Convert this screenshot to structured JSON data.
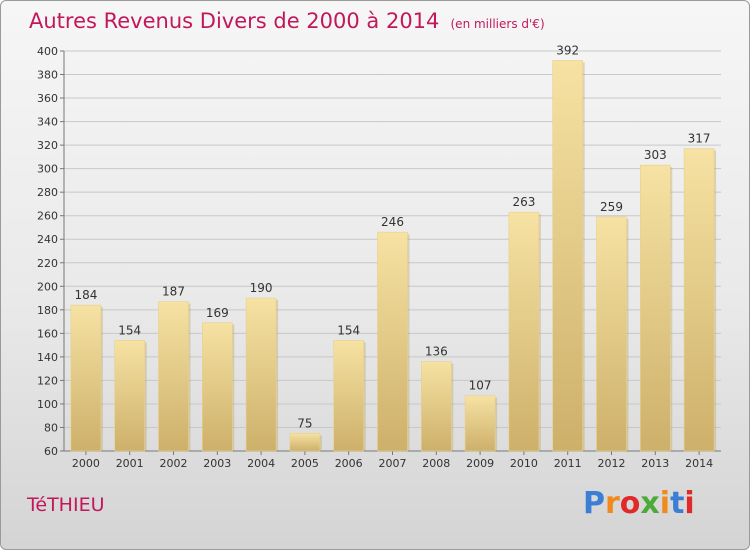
{
  "header": {
    "title": "Autres Revenus Divers de 2000 à 2014",
    "unit": "(en milliers d'€)"
  },
  "footer": {
    "commune": "TéTHIEU",
    "brand": "Proxiti",
    "brand_colors": [
      "#3a7fd5",
      "#f08a1c",
      "#e02a2a",
      "#4caa3a",
      "#f08a1c",
      "#3a7fd5",
      "#e02a2a"
    ]
  },
  "colors": {
    "title": "#c2185b",
    "bar_light": "#f6e2a3",
    "bar_dark": "#cdb06a",
    "grid": "#c8c8c8"
  },
  "chart_data": {
    "type": "bar",
    "categories": [
      "2000",
      "2001",
      "2002",
      "2003",
      "2004",
      "2005",
      "2006",
      "2007",
      "2008",
      "2009",
      "2010",
      "2011",
      "2012",
      "2013",
      "2014"
    ],
    "values": [
      184,
      154,
      187,
      169,
      190,
      75,
      154,
      246,
      136,
      107,
      263,
      392,
      259,
      303,
      317
    ],
    "ylim": [
      60,
      400
    ],
    "yticks": [
      60,
      80,
      100,
      120,
      140,
      160,
      180,
      200,
      220,
      240,
      260,
      280,
      300,
      320,
      340,
      360,
      380,
      400
    ],
    "grid": true,
    "legend": "none"
  }
}
